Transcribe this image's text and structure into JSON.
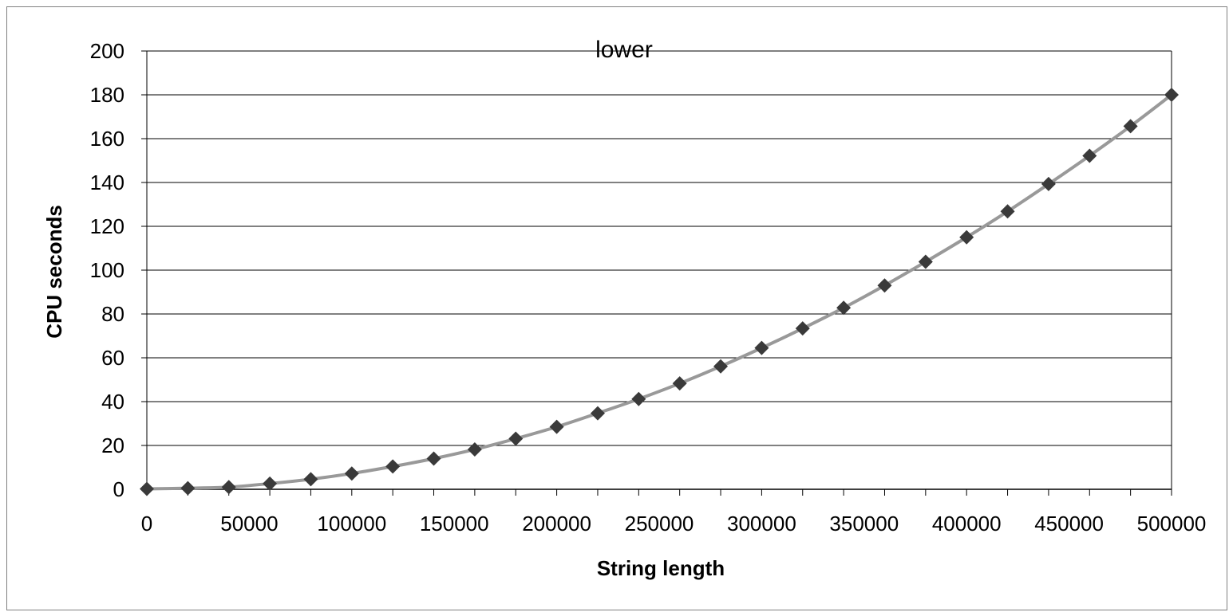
{
  "chart_data": {
    "type": "line",
    "title": "lower",
    "xlabel": "String length",
    "ylabel": "CPU seconds",
    "xlim": [
      0,
      500000
    ],
    "ylim": [
      0,
      200
    ],
    "x_ticks": [
      "0",
      "50000",
      "100000",
      "150000",
      "200000",
      "250000",
      "300000",
      "350000",
      "400000",
      "450000",
      "500000"
    ],
    "y_ticks": [
      "0",
      "20",
      "40",
      "60",
      "80",
      "100",
      "120",
      "140",
      "160",
      "180",
      "200"
    ],
    "grid": "horizontal",
    "legend": "none",
    "marker": "diamond",
    "colors": {
      "line": "#999999",
      "marker": "#3a3a3a",
      "grid": "#000000"
    },
    "series": [
      {
        "x": [
          0,
          20000,
          40000,
          60000,
          80000,
          100000,
          120000,
          140000,
          160000,
          180000,
          200000,
          220000,
          240000,
          260000,
          280000,
          300000,
          320000,
          340000,
          360000,
          380000,
          400000,
          420000,
          440000,
          460000,
          480000,
          500000
        ],
        "values": [
          0.2,
          0.5,
          1.0,
          2.6,
          4.6,
          7.2,
          10.4,
          14.0,
          18.2,
          23.1,
          28.5,
          34.7,
          41.2,
          48.3,
          56.1,
          64.5,
          73.4,
          82.8,
          93.0,
          103.8,
          115.0,
          126.8,
          139.3,
          152.2,
          165.7,
          180.0
        ]
      }
    ]
  }
}
